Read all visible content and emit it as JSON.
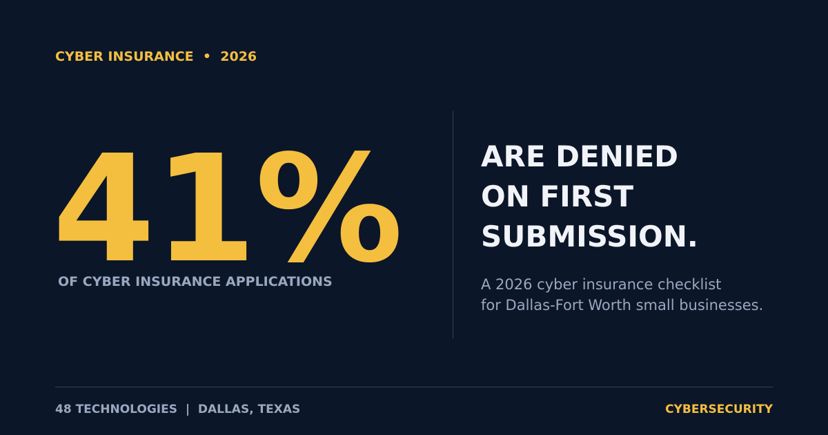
{
  "eyebrow": {
    "text": "CYBER INSURANCE  •  2026"
  },
  "stat": {
    "value": "41%",
    "caption": "OF CYBER INSURANCE APPLICATIONS"
  },
  "headline": {
    "lines": [
      "ARE DENIED",
      "ON FIRST",
      "SUBMISSION."
    ]
  },
  "subtext": {
    "lines": [
      "A 2026 cyber insurance checklist",
      "for Dallas-Fort Worth small businesses."
    ]
  },
  "footer": {
    "left": "48 TECHNOLOGIES  |  DALLAS, TEXAS",
    "right": "CYBERSECURITY"
  },
  "colors": {
    "background": "#0c1629",
    "accent": "#f4bf3f",
    "headline": "#f1f3f8",
    "muted": "#9aa8bf",
    "divider": "#34405a"
  }
}
